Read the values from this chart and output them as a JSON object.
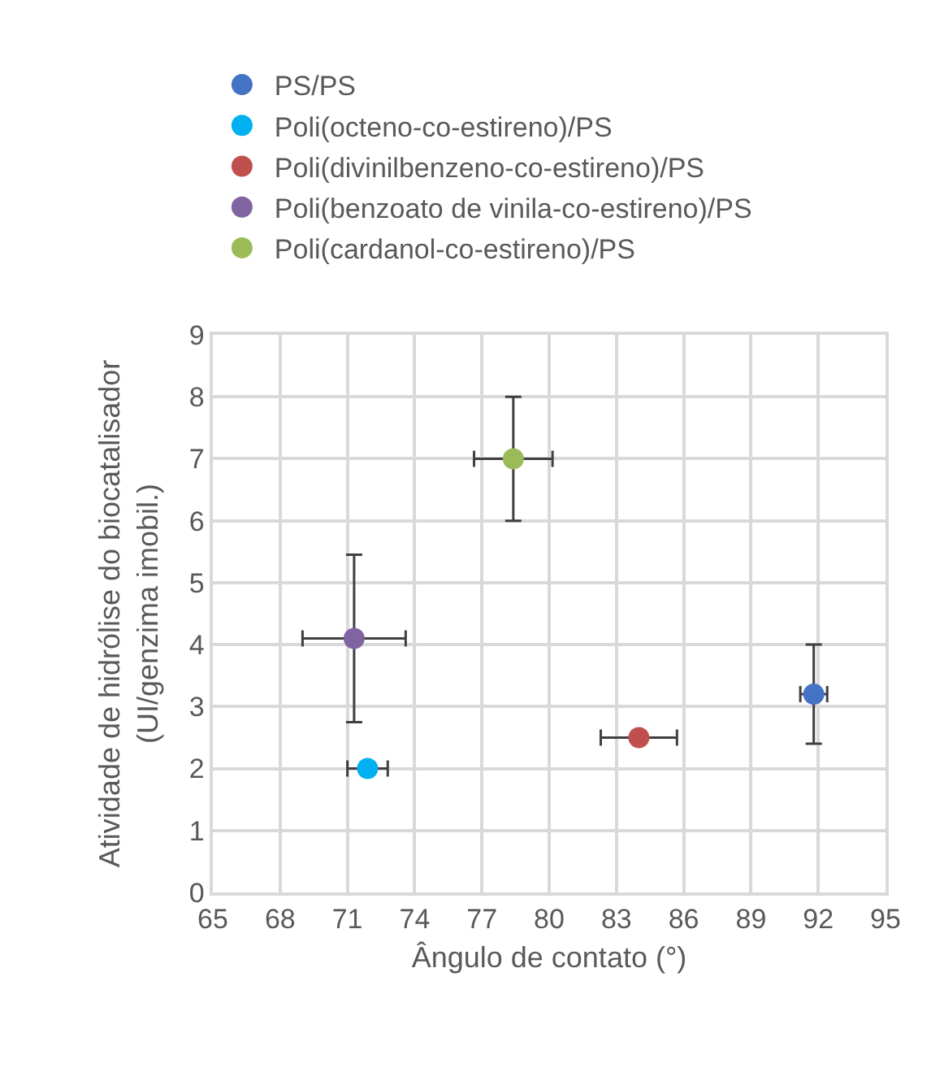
{
  "chart_data": {
    "type": "scatter",
    "xlabel": "Ângulo de contato (°)",
    "ylabel": "Atividade de hidrólise do biocatalisador\n(UI/genzima imobil.)",
    "xlim": [
      65,
      95
    ],
    "xticks": [
      65,
      68,
      71,
      74,
      77,
      80,
      83,
      86,
      89,
      92,
      95
    ],
    "ylim": [
      0,
      9
    ],
    "yticks": [
      0,
      1,
      2,
      3,
      4,
      5,
      6,
      7,
      8,
      9
    ],
    "grid": true,
    "legend": "top left",
    "marker": "circle",
    "series": [
      {
        "name": "PS/PS",
        "color": "#4472c4",
        "x": [
          91.8
        ],
        "values": [
          3.2
        ],
        "errors": [
          0.8
        ],
        "xerrors": [
          0.6
        ]
      },
      {
        "name": "Poli(octeno-co-estireno)/PS",
        "color": "#00b0f0",
        "x": [
          71.9
        ],
        "values": [
          2.0
        ],
        "errors": [
          null
        ],
        "xerrors": [
          0.9
        ]
      },
      {
        "name": "Poli(divinilbenzeno-co-estireno)/PS",
        "color": "#c0504d",
        "x": [
          84.0
        ],
        "values": [
          2.5
        ],
        "errors": [
          null
        ],
        "xerrors": [
          1.7
        ]
      },
      {
        "name": "Poli(benzoato de vinila-co-estireno)/PS",
        "color": "#8064a2",
        "x": [
          71.3
        ],
        "values": [
          4.1
        ],
        "errors": [
          1.35
        ],
        "xerrors": [
          2.3
        ]
      },
      {
        "name": "Poli(cardanol-co-estireno)/PS",
        "color": "#9bbb59",
        "x": [
          78.4
        ],
        "values": [
          7.0
        ],
        "errors": [
          1.0
        ],
        "xerrors": [
          1.75
        ]
      }
    ]
  }
}
